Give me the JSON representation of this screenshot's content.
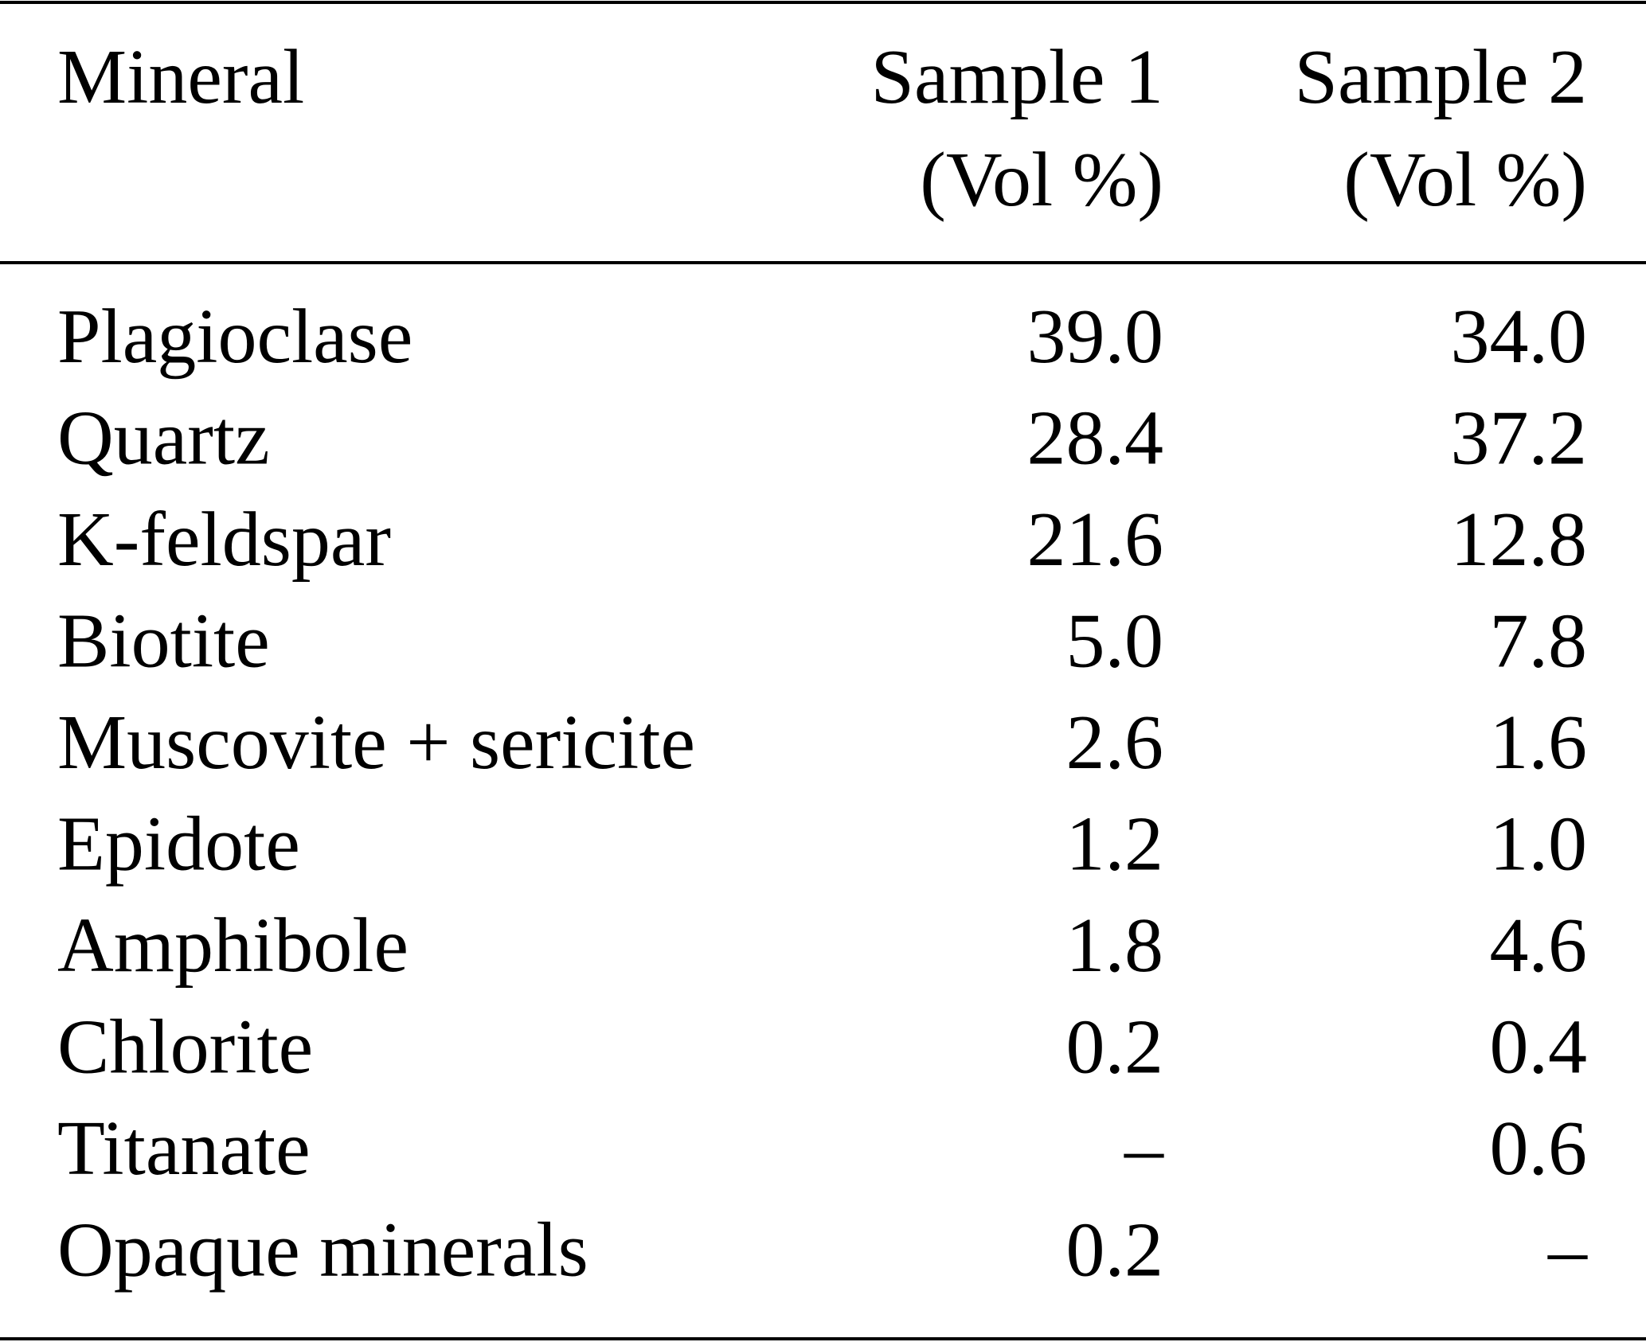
{
  "table": {
    "header": [
      [
        "Mineral"
      ],
      [
        "Sample 1",
        "(Vol %)"
      ],
      [
        "Sample 2",
        "(Vol %)"
      ]
    ],
    "rows": [
      [
        "Plagioclase",
        "39.0",
        "34.0"
      ],
      [
        "Quartz",
        "28.4",
        "37.2"
      ],
      [
        "K-feldspar",
        "21.6",
        "12.8"
      ],
      [
        "Biotite",
        "5.0",
        "7.8"
      ],
      [
        "Muscovite + sericite",
        "2.6",
        "1.6"
      ],
      [
        "Epidote",
        "1.2",
        "1.0"
      ],
      [
        "Amphibole",
        "1.8",
        "4.6"
      ],
      [
        "Chlorite",
        "0.2",
        "0.4"
      ],
      [
        "Titanate",
        "–",
        "0.6"
      ],
      [
        "Opaque minerals",
        "0.2",
        "–"
      ]
    ]
  }
}
